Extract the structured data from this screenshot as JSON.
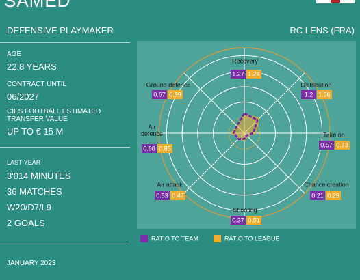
{
  "header": {
    "name": "SAMED",
    "role": "DEFENSIVE PLAYMAKER",
    "club": "RC LENS (FRA)"
  },
  "profile": [
    {
      "label": "AGE",
      "value": "22.8 YEARS"
    },
    {
      "label": "CONTRACT  UNTIL",
      "value": "06/2027"
    },
    {
      "label": "CIES FOOTBALL ESTIMATED TRANSFER  VALUE",
      "value": "UP TO € 15 M"
    }
  ],
  "last_year": {
    "label": "LAST YEAR",
    "stats": [
      "3'014 MINUTES",
      "36 MATCHES",
      "W20/D7/L9",
      "2 GOALS"
    ]
  },
  "date": "JANUARY  2023",
  "chart_data": {
    "type": "radar",
    "categories": [
      "Recovery",
      "Distribution",
      "Take on",
      "Chance creation",
      "Shooting",
      "Air attack",
      "Air defence",
      "Ground defence"
    ],
    "series": [
      {
        "name": "RATIO TO TEAM",
        "color": "#7b2fa8",
        "values": [
          1.27,
          1.2,
          0.57,
          0.21,
          0.37,
          0.53,
          0.68,
          0.67
        ]
      },
      {
        "name": "RATIO TO LEAGUE",
        "color": "#f0ac2c",
        "values": [
          1.24,
          1.36,
          0.73,
          0.29,
          0.51,
          0.47,
          0.85,
          0.69
        ]
      }
    ],
    "rlim": [
      0,
      5.5
    ],
    "rticks": [
      1,
      2,
      3,
      4,
      5
    ]
  }
}
